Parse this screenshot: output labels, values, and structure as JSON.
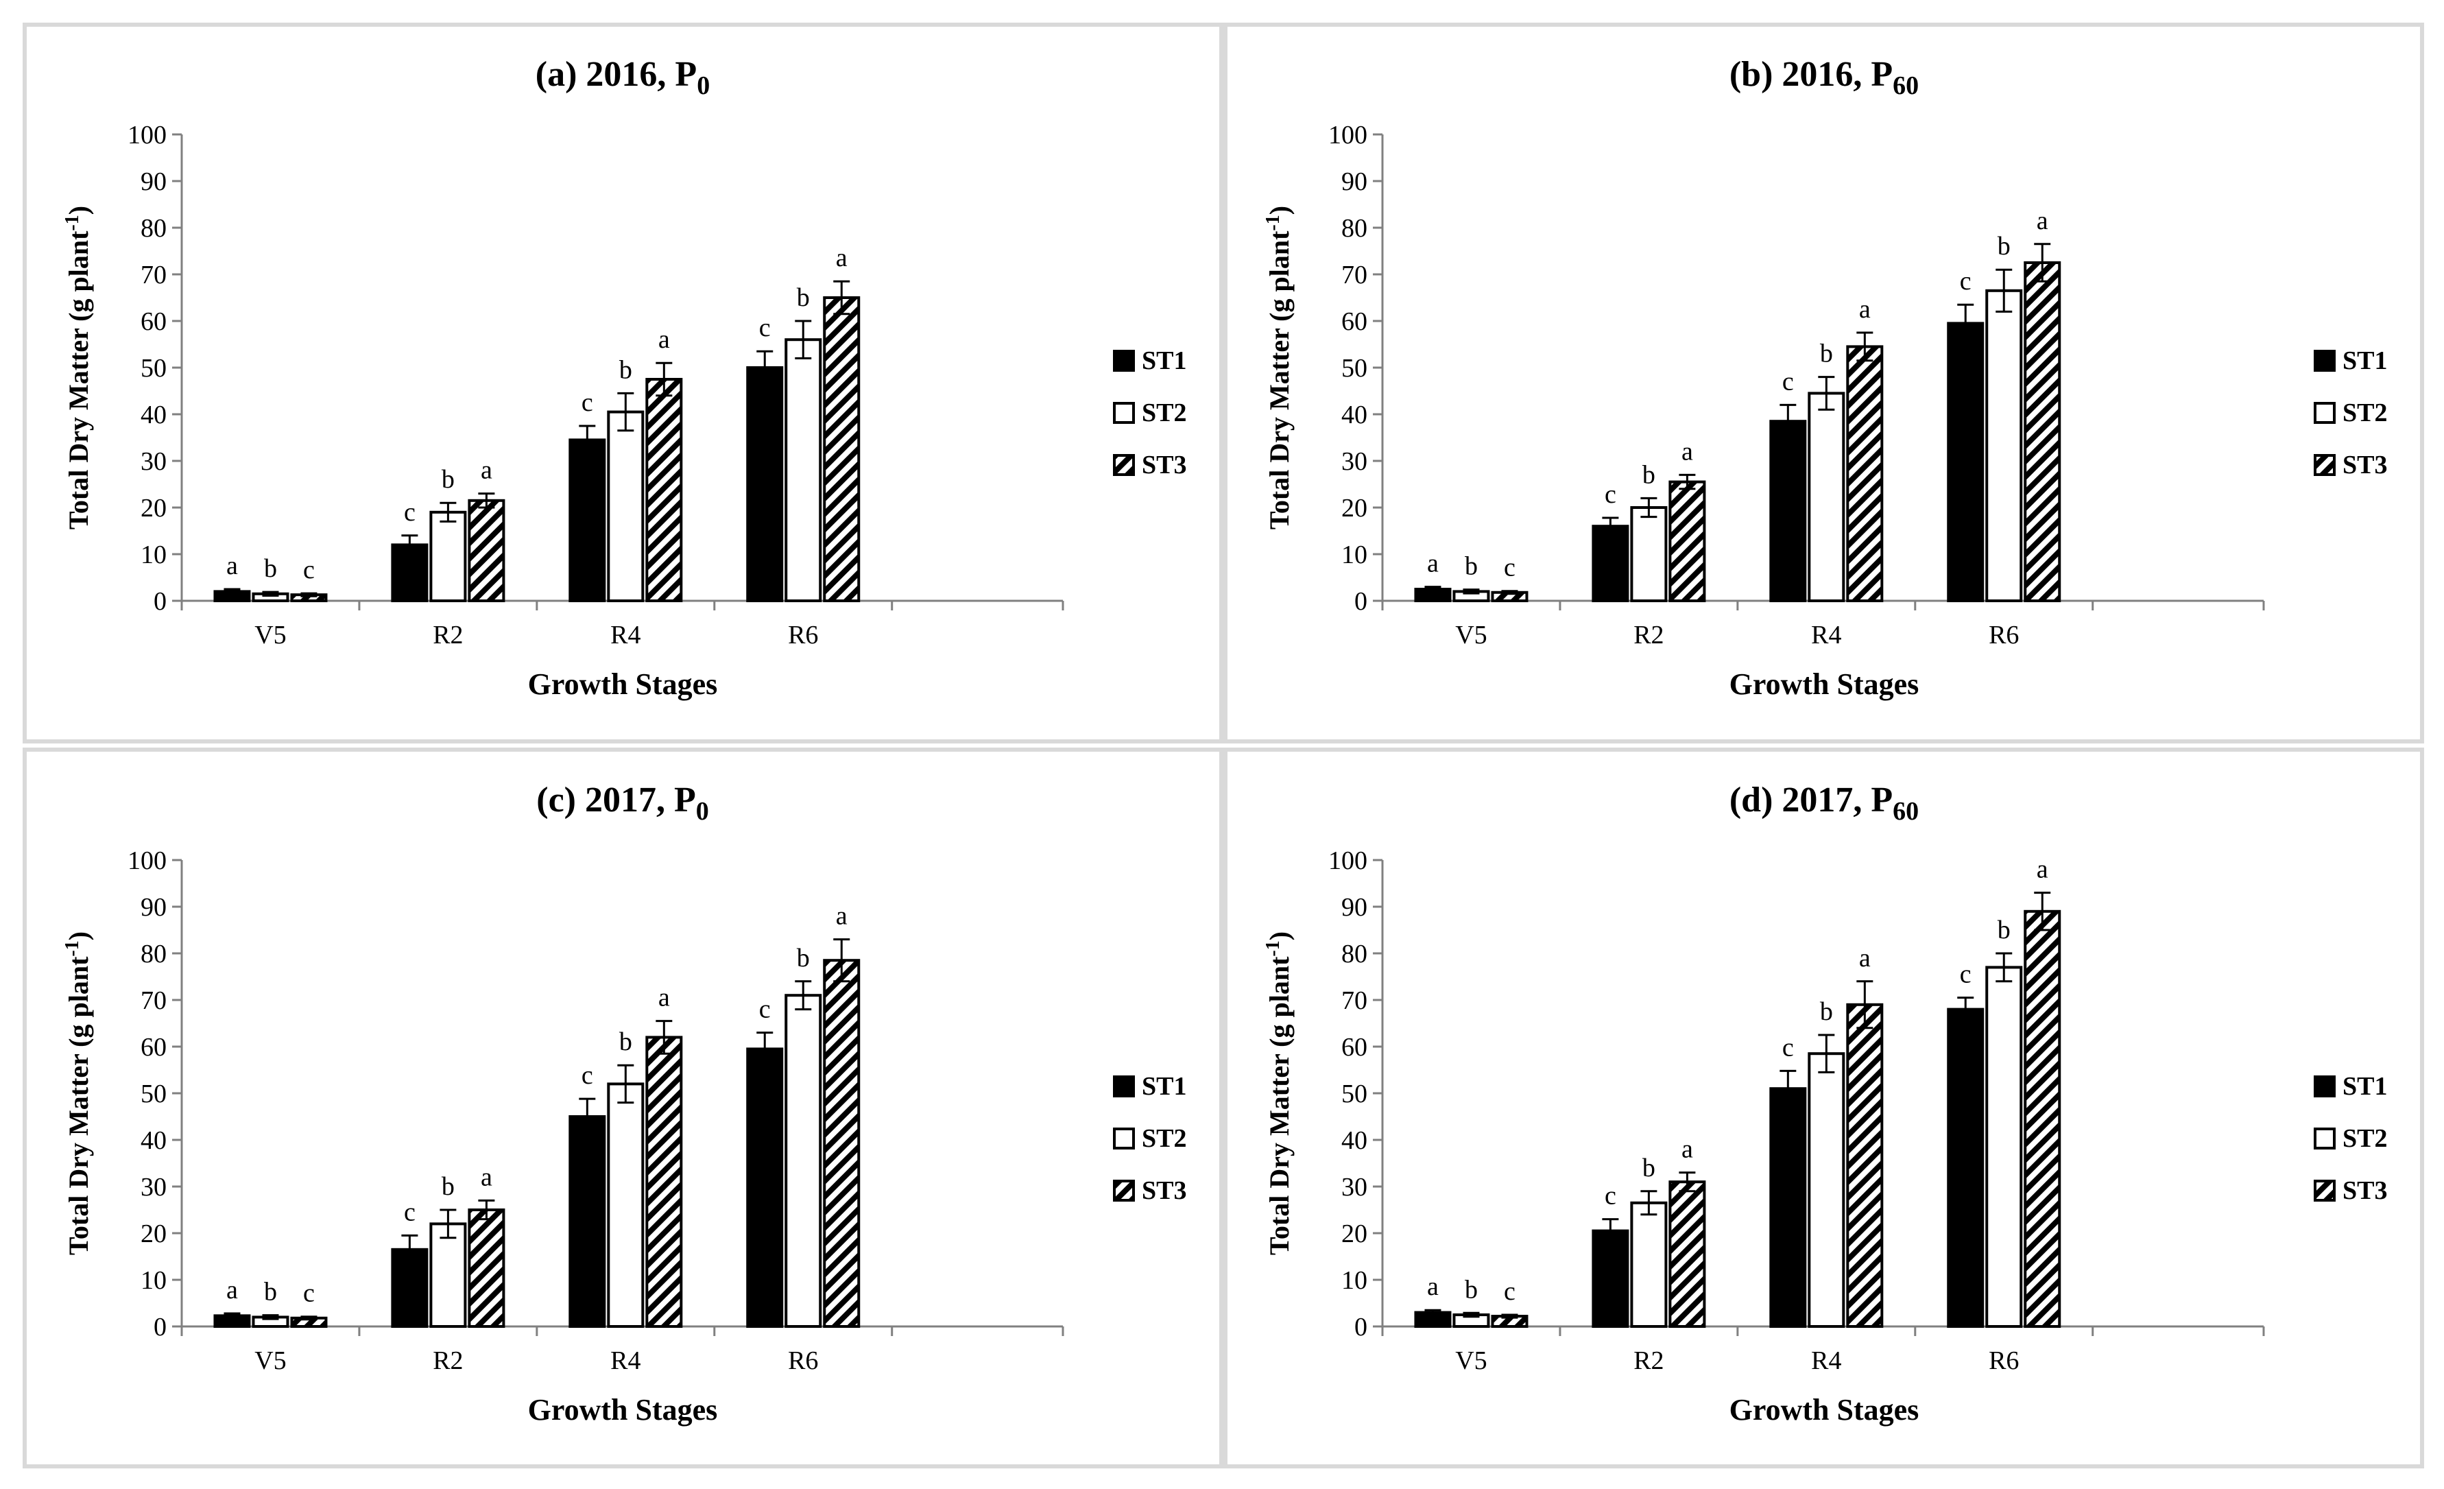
{
  "figure": {
    "legend_entries": [
      "ST1",
      "ST2",
      "ST3"
    ],
    "series_styles": {
      "ST1": {
        "fill": "#000000",
        "pattern": "solid"
      },
      "ST2": {
        "fill": "#ffffff",
        "pattern": "hollow"
      },
      "ST3": {
        "fill": "#ffffff",
        "pattern": "diagonal-hatch"
      }
    }
  },
  "chart_data": [
    {
      "type": "bar",
      "panel": "a",
      "title": {
        "main": "(a) 2016, P",
        "subscript": "0"
      },
      "xlabel": "Growth Stages",
      "ylabel": "Total Dry Matter (g plant",
      "ylabel_sup": "-1",
      "ylabel_end": ")",
      "ylim": [
        0,
        100
      ],
      "yticks": [
        "0",
        "10",
        "20",
        "30",
        "40",
        "50",
        "60",
        "70",
        "80",
        "90",
        "100"
      ],
      "categories": [
        "V5",
        "R2",
        "R4",
        "R6"
      ],
      "series": [
        {
          "name": "ST1",
          "values": [
            2,
            12,
            34.5,
            50
          ],
          "errors": [
            0.5,
            2,
            3,
            3.5
          ],
          "letters": [
            "a",
            "c",
            "c",
            "c"
          ]
        },
        {
          "name": "ST2",
          "values": [
            1.5,
            19,
            40.5,
            56
          ],
          "errors": [
            0.4,
            2,
            4,
            4
          ],
          "letters": [
            "b",
            "b",
            "b",
            "b"
          ]
        },
        {
          "name": "ST3",
          "values": [
            1.3,
            21.5,
            47.5,
            65
          ],
          "errors": [
            0.3,
            1.5,
            3.5,
            3.5
          ],
          "letters": [
            "c",
            "a",
            "a",
            "a"
          ]
        }
      ]
    },
    {
      "type": "bar",
      "panel": "b",
      "title": {
        "main": "(b) 2016, P",
        "subscript": "60"
      },
      "xlabel": "Growth Stages",
      "ylabel": "Total Dry Matter (g plant",
      "ylabel_sup": "-1",
      "ylabel_end": ")",
      "ylim": [
        0,
        100
      ],
      "yticks": [
        "0",
        "10",
        "20",
        "30",
        "40",
        "50",
        "60",
        "70",
        "80",
        "90",
        "100"
      ],
      "categories": [
        "V5",
        "R2",
        "R4",
        "R6"
      ],
      "series": [
        {
          "name": "ST1",
          "values": [
            2.5,
            16,
            38.5,
            59.5
          ],
          "errors": [
            0.5,
            1.8,
            3.5,
            4
          ],
          "letters": [
            "a",
            "c",
            "c",
            "c"
          ]
        },
        {
          "name": "ST2",
          "values": [
            2,
            20,
            44.5,
            66.5
          ],
          "errors": [
            0.4,
            2,
            3.5,
            4.5
          ],
          "letters": [
            "b",
            "b",
            "b",
            "b"
          ]
        },
        {
          "name": "ST3",
          "values": [
            1.8,
            25.5,
            54.5,
            72.5
          ],
          "errors": [
            0.3,
            1.5,
            3,
            4
          ],
          "letters": [
            "c",
            "a",
            "a",
            "a"
          ]
        }
      ]
    },
    {
      "type": "bar",
      "panel": "c",
      "title": {
        "main": "(c) 2017, P",
        "subscript": "0"
      },
      "xlabel": "Growth Stages",
      "ylabel": "Total Dry Matter (g plant",
      "ylabel_sup": "-1",
      "ylabel_end": ")",
      "ylim": [
        0,
        100
      ],
      "yticks": [
        "0",
        "10",
        "20",
        "30",
        "40",
        "50",
        "60",
        "70",
        "80",
        "90",
        "100"
      ],
      "categories": [
        "V5",
        "R2",
        "R4",
        "R6"
      ],
      "series": [
        {
          "name": "ST1",
          "values": [
            2.3,
            16.5,
            45,
            59.5
          ],
          "errors": [
            0.5,
            3,
            3.8,
            3.5
          ],
          "letters": [
            "a",
            "c",
            "c",
            "c"
          ]
        },
        {
          "name": "ST2",
          "values": [
            2,
            22,
            52,
            71
          ],
          "errors": [
            0.4,
            3,
            4,
            3
          ],
          "letters": [
            "b",
            "b",
            "b",
            "b"
          ]
        },
        {
          "name": "ST3",
          "values": [
            1.8,
            25,
            62,
            78.5
          ],
          "errors": [
            0.3,
            2,
            3.5,
            4.5
          ],
          "letters": [
            "c",
            "a",
            "a",
            "a"
          ]
        }
      ]
    },
    {
      "type": "bar",
      "panel": "d",
      "title": {
        "main": "(d) 2017, P",
        "subscript": "60"
      },
      "xlabel": "Growth Stages",
      "ylabel": "Total Dry Matter (g plant",
      "ylabel_sup": "-1",
      "ylabel_end": ")",
      "ylim": [
        0,
        100
      ],
      "yticks": [
        "0",
        "10",
        "20",
        "30",
        "40",
        "50",
        "60",
        "70",
        "80",
        "90",
        "100"
      ],
      "categories": [
        "V5",
        "R2",
        "R4",
        "R6"
      ],
      "series": [
        {
          "name": "ST1",
          "values": [
            3,
            20.5,
            51,
            68
          ],
          "errors": [
            0.5,
            2.5,
            3.8,
            2.5
          ],
          "letters": [
            "a",
            "c",
            "c",
            "c"
          ]
        },
        {
          "name": "ST2",
          "values": [
            2.5,
            26.5,
            58.5,
            77
          ],
          "errors": [
            0.4,
            2.5,
            4,
            3
          ],
          "letters": [
            "b",
            "b",
            "b",
            "b"
          ]
        },
        {
          "name": "ST3",
          "values": [
            2.2,
            31,
            69,
            89
          ],
          "errors": [
            0.3,
            2,
            5,
            4
          ],
          "letters": [
            "c",
            "a",
            "a",
            "a"
          ]
        }
      ]
    }
  ]
}
